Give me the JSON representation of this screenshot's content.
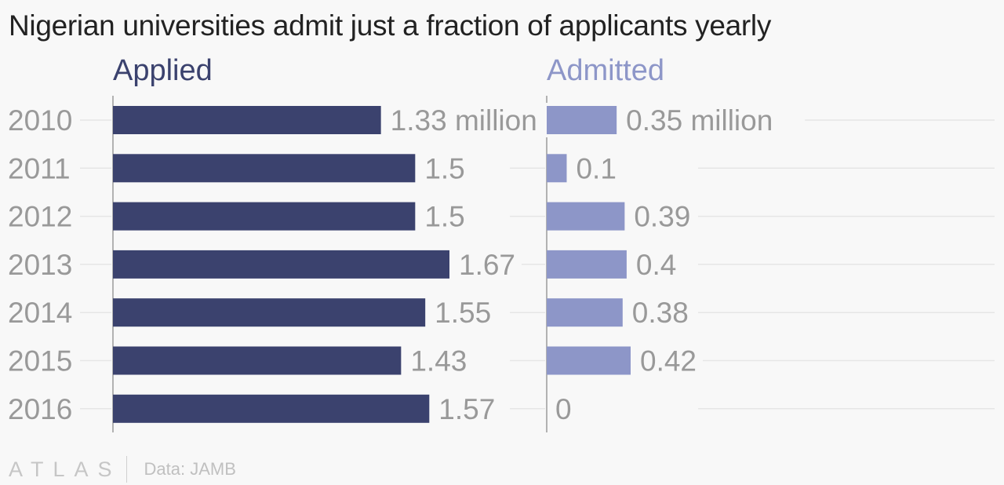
{
  "title": "Nigerian universities admit just a fraction of applicants yearly",
  "footer": {
    "brand": "ATLAS",
    "source": "Data: JAMB"
  },
  "colors": {
    "applied": "#3b426e",
    "admitted": "#8d96c8",
    "axis_text": "#999999",
    "grid": "#e6e6e6"
  },
  "chart_data": {
    "type": "bar",
    "orientation": "horizontal",
    "categories": [
      "2010",
      "2011",
      "2012",
      "2013",
      "2014",
      "2015",
      "2016"
    ],
    "series": [
      {
        "name": "Applied",
        "values": [
          1.33,
          1.5,
          1.5,
          1.67,
          1.55,
          1.43,
          1.57
        ],
        "labels": [
          "1.33 million",
          "1.5",
          "1.5",
          "1.67",
          "1.55",
          "1.43",
          "1.57"
        ]
      },
      {
        "name": "Admitted",
        "values": [
          0.35,
          0.1,
          0.39,
          0.4,
          0.38,
          0.42,
          0
        ],
        "labels": [
          "0.35 million",
          "0.1",
          "0.39",
          "0.4",
          "0.38",
          "0.42",
          "0"
        ]
      }
    ],
    "xlim": [
      0,
      1.67
    ],
    "unit": "million",
    "grid": true
  }
}
